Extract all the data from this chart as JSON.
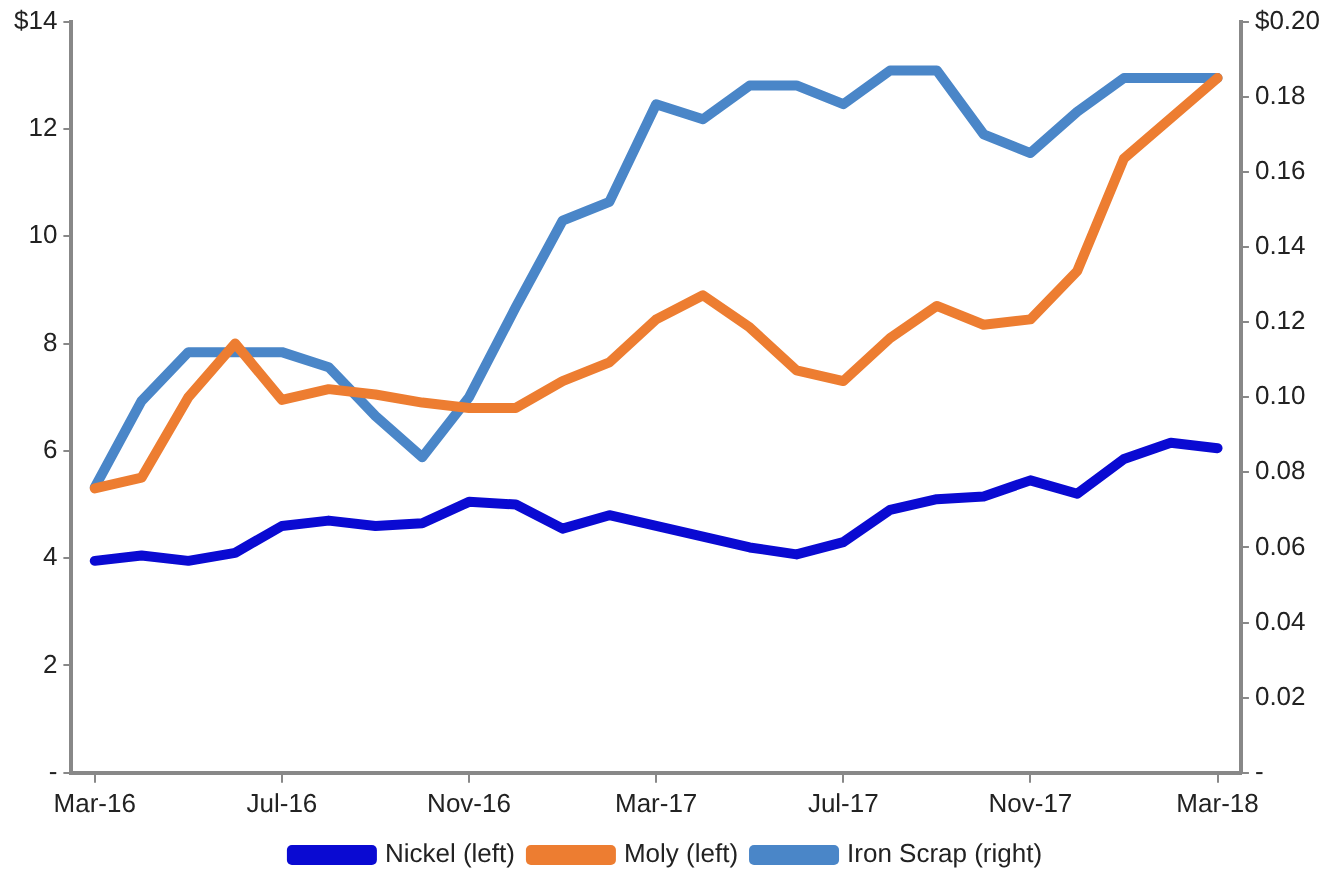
{
  "chart_data": {
    "type": "line",
    "categories": [
      "Mar-16",
      null,
      null,
      null,
      "Jul-16",
      null,
      null,
      null,
      "Nov-16",
      null,
      null,
      null,
      "Mar-17",
      null,
      null,
      null,
      "Jul-17",
      null,
      null,
      null,
      "Nov-17",
      null,
      null,
      null,
      "Mar-18"
    ],
    "series": [
      {
        "name": "Nickel (left)",
        "color": "#0a0ad2",
        "values": [
          3.95,
          4.05,
          3.95,
          4.1,
          4.6,
          4.7,
          4.6,
          4.65,
          5.05,
          5.0,
          4.55,
          4.8,
          4.6,
          4.4,
          4.2,
          4.07,
          4.3,
          4.9,
          5.1,
          5.15,
          5.45,
          5.2,
          5.85,
          6.15,
          6.05
        ]
      },
      {
        "name": "Moly (left)",
        "color": "#ed7d31",
        "values": [
          5.3,
          5.5,
          7.0,
          8.0,
          6.95,
          7.15,
          7.05,
          6.9,
          6.8,
          6.8,
          7.3,
          7.65,
          8.45,
          8.9,
          8.3,
          7.5,
          7.3,
          8.1,
          8.7,
          8.35,
          8.45,
          9.35,
          11.45,
          12.2,
          12.95
        ]
      },
      {
        "name": "Iron Scrap (right)",
        "color": "#4a86c8",
        "axis": "y2",
        "values": [
          0.076,
          0.099,
          0.112,
          0.112,
          0.112,
          0.108,
          0.095,
          0.084,
          0.1,
          0.124,
          0.147,
          0.152,
          0.178,
          0.174,
          0.183,
          0.183,
          0.178,
          0.187,
          0.187,
          0.17,
          0.165,
          0.176,
          0.185,
          0.185,
          0.185
        ]
      }
    ],
    "ylim": [
      0,
      14
    ],
    "yticks": [
      {
        "value": 0,
        "label": "-"
      },
      2,
      4,
      6,
      8,
      10,
      12,
      {
        "value": 14,
        "label": "$14"
      }
    ],
    "y2lim": [
      0,
      0.2
    ],
    "y2ticks": [
      {
        "value": 0,
        "label": "-"
      },
      0.02,
      0.04,
      0.06,
      0.08,
      {
        "value": 0.1,
        "label": "0.10"
      },
      0.12,
      0.14,
      0.16,
      0.18,
      {
        "value": 0.2,
        "label": "$0.20"
      }
    ],
    "grid": false,
    "legend": "bottom",
    "marker": "none",
    "line_style": "solid"
  }
}
